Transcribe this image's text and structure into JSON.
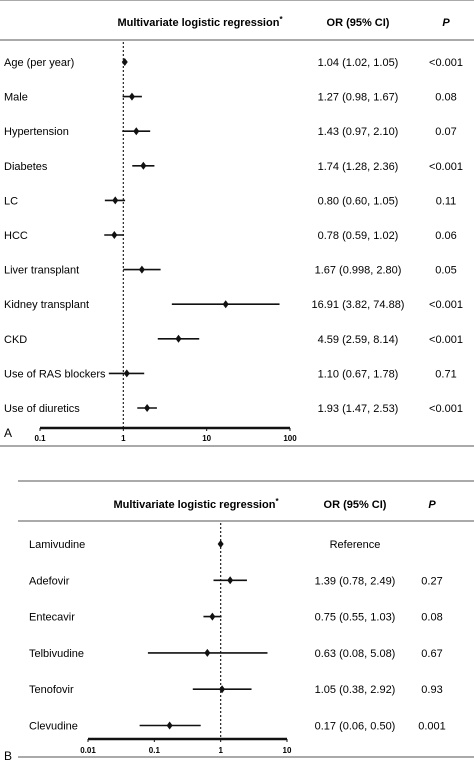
{
  "chart_data": [
    {
      "type": "forest",
      "panel_label": "A",
      "header": {
        "method": "Multivariate logistic regression",
        "method_suffix": "*",
        "or_header": "OR (95% CI)",
        "p_header": "P"
      },
      "x_scale": "log",
      "xlim": [
        0.1,
        100
      ],
      "reference_line": 1,
      "ticks": [
        {
          "value": 0.1,
          "label": "0.1"
        },
        {
          "value": 1,
          "label": "1"
        },
        {
          "value": 10,
          "label": "10"
        },
        {
          "value": 100,
          "label": "100"
        }
      ],
      "rows": [
        {
          "label": "Age (per year)",
          "or": 1.04,
          "lo": 1.02,
          "hi": 1.05,
          "or_text": "1.04 (1.02, 1.05)",
          "p": "<0.001"
        },
        {
          "label": "Male",
          "or": 1.27,
          "lo": 0.98,
          "hi": 1.67,
          "or_text": "1.27 (0.98, 1.67)",
          "p": "0.08"
        },
        {
          "label": "Hypertension",
          "or": 1.43,
          "lo": 0.97,
          "hi": 2.1,
          "or_text": "1.43 (0.97, 2.10)",
          "p": "0.07"
        },
        {
          "label": "Diabetes",
          "or": 1.74,
          "lo": 1.28,
          "hi": 2.36,
          "or_text": "1.74 (1.28, 2.36)",
          "p": "<0.001"
        },
        {
          "label": "LC",
          "or": 0.8,
          "lo": 0.6,
          "hi": 1.05,
          "or_text": "0.80 (0.60, 1.05)",
          "p": "0.11"
        },
        {
          "label": "HCC",
          "or": 0.78,
          "lo": 0.59,
          "hi": 1.02,
          "or_text": "0.78 (0.59, 1.02)",
          "p": "0.06"
        },
        {
          "label": "Liver transplant",
          "or": 1.67,
          "lo": 0.998,
          "hi": 2.8,
          "or_text": "1.67 (0.998, 2.80)",
          "p": "0.05"
        },
        {
          "label": "Kidney transplant",
          "or": 16.91,
          "lo": 3.82,
          "hi": 74.88,
          "or_text": "16.91 (3.82, 74.88)",
          "p": "<0.001"
        },
        {
          "label": "CKD",
          "or": 4.59,
          "lo": 2.59,
          "hi": 8.14,
          "or_text": "4.59 (2.59, 8.14)",
          "p": "<0.001"
        },
        {
          "label": "Use of RAS blockers",
          "or": 1.1,
          "lo": 0.67,
          "hi": 1.78,
          "or_text": "1.10 (0.67, 1.78)",
          "p": "0.71"
        },
        {
          "label": "Use of diuretics",
          "or": 1.93,
          "lo": 1.47,
          "hi": 2.53,
          "or_text": "1.93 (1.47, 2.53)",
          "p": "<0.001"
        }
      ]
    },
    {
      "type": "forest",
      "panel_label": "B",
      "header": {
        "method": "Multivariate logistic regression",
        "method_suffix": "*",
        "or_header": "OR (95% CI)",
        "p_header": "P"
      },
      "x_scale": "log",
      "xlim": [
        0.01,
        10
      ],
      "reference_line": 1,
      "ticks": [
        {
          "value": 0.01,
          "label": "0.01"
        },
        {
          "value": 0.1,
          "label": "0.1"
        },
        {
          "value": 1,
          "label": "1"
        },
        {
          "value": 10,
          "label": "10"
        }
      ],
      "rows": [
        {
          "label": "Lamivudine",
          "or": 1.0,
          "lo": null,
          "hi": null,
          "or_text": "Reference",
          "p": ""
        },
        {
          "label": "Adefovir",
          "or": 1.39,
          "lo": 0.78,
          "hi": 2.49,
          "or_text": "1.39 (0.78, 2.49)",
          "p": "0.27"
        },
        {
          "label": "Entecavir",
          "or": 0.75,
          "lo": 0.55,
          "hi": 1.03,
          "or_text": "0.75 (0.55, 1.03)",
          "p": "0.08"
        },
        {
          "label": "Telbivudine",
          "or": 0.63,
          "lo": 0.08,
          "hi": 5.08,
          "or_text": "0.63 (0.08, 5.08)",
          "p": "0.67"
        },
        {
          "label": "Tenofovir",
          "or": 1.05,
          "lo": 0.38,
          "hi": 2.92,
          "or_text": "1.05 (0.38, 2.92)",
          "p": "0.93"
        },
        {
          "label": "Clevudine",
          "or": 0.17,
          "lo": 0.06,
          "hi": 0.5,
          "or_text": "0.17 (0.06, 0.50)",
          "p": "0.001"
        }
      ]
    }
  ]
}
